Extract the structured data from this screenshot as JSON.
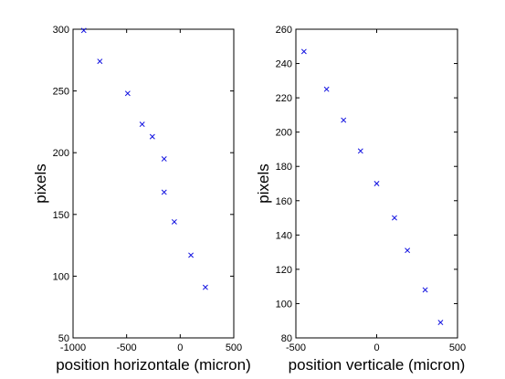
{
  "chart_data": [
    {
      "type": "scatter",
      "xlabel": "position horizontale (micron)",
      "ylabel": "pixels",
      "xlim": [
        -1000,
        500
      ],
      "ylim": [
        50,
        300
      ],
      "xticks": [
        -1000,
        -500,
        0,
        500
      ],
      "yticks": [
        50,
        100,
        150,
        200,
        250,
        300
      ],
      "marker": "x",
      "marker_color": "#1010e0",
      "grid": false,
      "x": [
        -900,
        -750,
        -490,
        -355,
        -260,
        -150,
        -150,
        -55,
        100,
        235
      ],
      "y": [
        299,
        274,
        248,
        223,
        213,
        195,
        168,
        144,
        117,
        91
      ]
    },
    {
      "type": "scatter",
      "xlabel": "position verticale (micron)",
      "ylabel": "pixels",
      "xlim": [
        -500,
        500
      ],
      "ylim": [
        80,
        260
      ],
      "xticks": [
        -500,
        0,
        500
      ],
      "yticks": [
        80,
        100,
        120,
        140,
        160,
        180,
        200,
        220,
        240,
        260
      ],
      "marker": "x",
      "marker_color": "#1010e0",
      "grid": false,
      "x": [
        -450,
        -310,
        -205,
        -100,
        0,
        110,
        190,
        300,
        395
      ],
      "y": [
        247,
        225,
        207,
        189,
        170,
        150,
        131,
        108,
        89
      ]
    }
  ]
}
